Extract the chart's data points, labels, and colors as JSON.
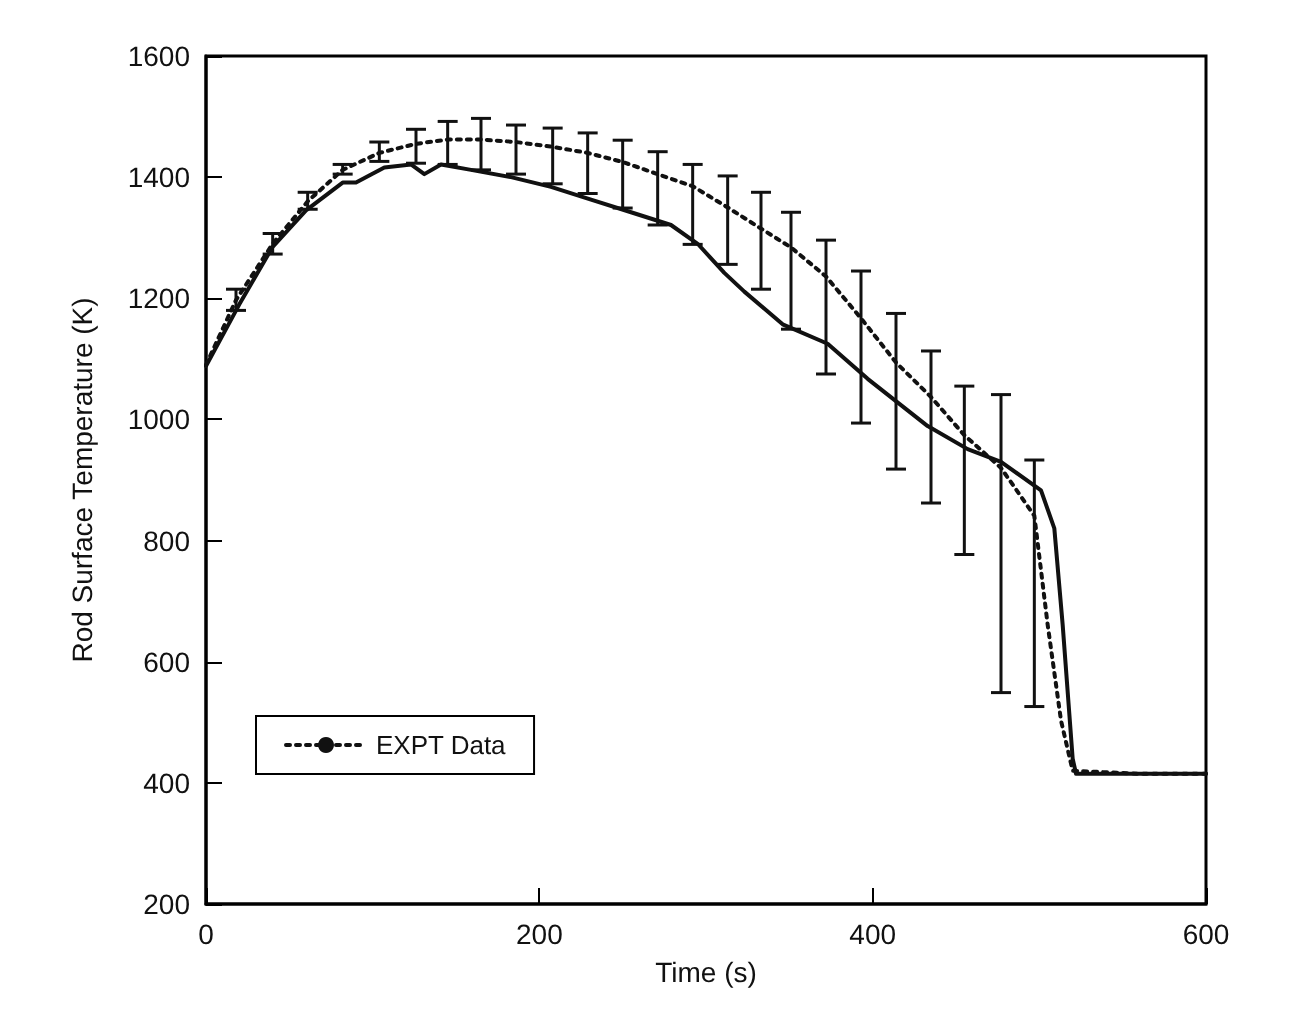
{
  "chart_data": {
    "type": "line",
    "xlabel": "Time (s)",
    "ylabel": "Rod Surface Temperature (K)",
    "xlim": [
      0,
      600
    ],
    "xticks": [
      0,
      200,
      400,
      600
    ],
    "ylim": [
      200,
      1600
    ],
    "yticks": [
      200,
      400,
      600,
      800,
      1000,
      1200,
      1400,
      1600
    ],
    "grid": false,
    "legend": "bottom left",
    "marker": "none",
    "series": [
      {
        "color": "#111111",
        "line_style": "solid",
        "x": [
          0,
          20,
          40,
          60,
          82,
          90,
          107,
          123,
          131,
          141,
          159,
          183,
          207,
          231,
          255,
          279,
          295,
          311,
          323,
          346,
          373,
          397,
          433,
          457,
          477,
          501,
          509,
          514,
          520,
          522,
          560,
          600
        ],
        "values": [
          1088,
          1190,
          1285,
          1345,
          1391,
          1391,
          1416,
          1421,
          1405,
          1421,
          1412,
          1400,
          1384,
          1363,
          1342,
          1321,
          1290,
          1242,
          1211,
          1157,
          1125,
          1067,
          989,
          951,
          930,
          883,
          820,
          661,
          440,
          415,
          415,
          415
        ]
      },
      {
        "name": "EXPT Data",
        "color": "#111111",
        "line_style": "dotted",
        "x": [
          0,
          18,
          40,
          61,
          82,
          104,
          126,
          145,
          165,
          186,
          208,
          229,
          250,
          271,
          292,
          313,
          333,
          351,
          372,
          393,
          414,
          435,
          455,
          477,
          497,
          505,
          513,
          520,
          560,
          600
        ],
        "values": [
          1090,
          1197,
          1290,
          1360,
          1412,
          1440,
          1455,
          1462,
          1462,
          1458,
          1450,
          1440,
          1425,
          1405,
          1385,
          1350,
          1315,
          1284,
          1236,
          1167,
          1094,
          1037,
          974,
          920,
          841,
          661,
          503,
          420,
          415,
          415
        ],
        "errors": [
          null,
          [
            1180,
            1215
          ],
          [
            1273,
            1307
          ],
          [
            1347,
            1375
          ],
          [
            1405,
            1421
          ],
          [
            1426,
            1458
          ],
          [
            1423,
            1479
          ],
          [
            1421,
            1492
          ],
          [
            1412,
            1497
          ],
          [
            1405,
            1486
          ],
          [
            1389,
            1481
          ],
          [
            1373,
            1473
          ],
          [
            1349,
            1461
          ],
          [
            1321,
            1442
          ],
          [
            1289,
            1421
          ],
          [
            1256,
            1402
          ],
          [
            1215,
            1375
          ],
          [
            1149,
            1342
          ],
          [
            1075,
            1296
          ],
          [
            994,
            1245
          ],
          [
            918,
            1175
          ],
          [
            862,
            1113
          ],
          [
            777,
            1055
          ],
          [
            549,
            1041
          ],
          [
            526,
            933
          ],
          null,
          null,
          null,
          null,
          null
        ]
      }
    ]
  }
}
